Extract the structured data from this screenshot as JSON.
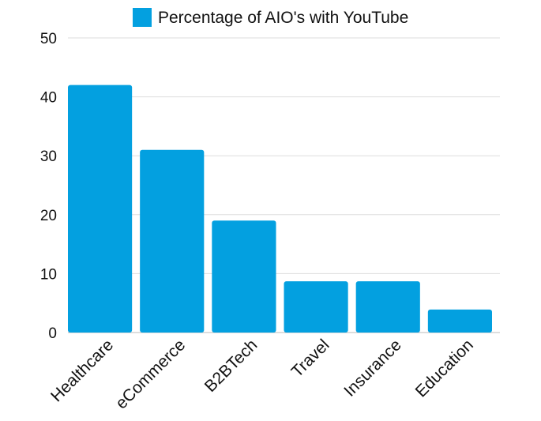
{
  "chart_data": {
    "type": "bar",
    "categories": [
      "Healthcare",
      "eCommerce",
      "B2BTech",
      "Travel",
      "Insurance",
      "Education"
    ],
    "series": [
      {
        "name": "Percentage of AIO's with YouTube",
        "values": [
          42,
          31,
          19,
          8.7,
          8.7,
          3.9
        ],
        "color": "#03a0e0"
      }
    ],
    "yticks": [
      0,
      10,
      20,
      30,
      40,
      50
    ],
    "ylim": [
      0,
      50
    ],
    "grid": true,
    "legend_position": "top-center"
  }
}
